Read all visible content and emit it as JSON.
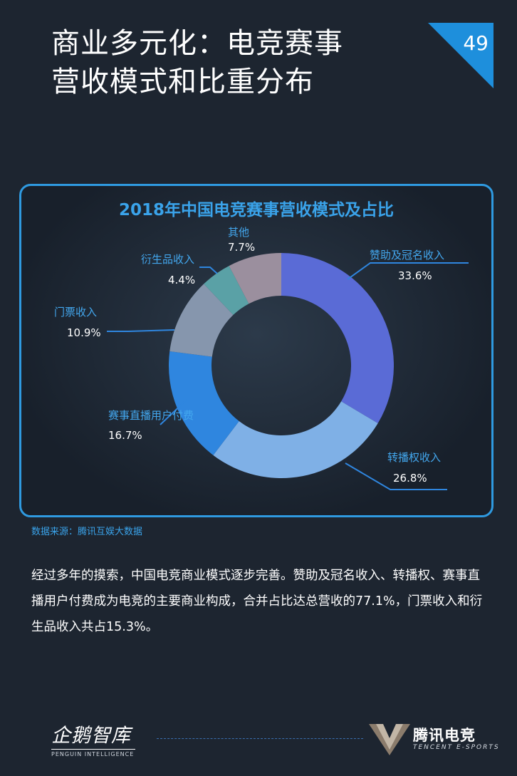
{
  "header": {
    "title_line1": "商业多元化：电竞赛事",
    "title_line2": "营收模式和比重分布",
    "page_number": "49"
  },
  "chart_data": {
    "type": "pie",
    "title": "2018年中国电竞赛事营收模式及占比",
    "donut": true,
    "categories": [
      "赞助及冠名收入",
      "转播权收入",
      "赛事直播用户付费",
      "门票收入",
      "衍生品收入",
      "其他"
    ],
    "values": [
      33.6,
      26.8,
      16.7,
      10.9,
      4.4,
      7.7
    ],
    "value_labels": [
      "33.6%",
      "26.8%",
      "16.7%",
      "10.9%",
      "4.4%",
      "7.7%"
    ],
    "colors": [
      "#5a6bd6",
      "#7fb0e6",
      "#2f86df",
      "#8696ad",
      "#5aa1a6",
      "#9b8f9e"
    ]
  },
  "source_text": "数据来源：腾讯互娱大数据",
  "body_text": "经过多年的摸索，中国电竞商业模式逐步完善。赞助及冠名收入、转播权、赛事直播用户付费成为电竞的主要商业构成，合并占比达总营收的77.1%，门票收入和衍生品收入共占15.3%。",
  "footer": {
    "logo_left_cn": "企鹅智库",
    "logo_left_en": "PENGUIN INTELLIGENCE",
    "logo_right_cn": "腾讯电竞",
    "logo_right_en": "TENCENT E-SPORTS"
  }
}
